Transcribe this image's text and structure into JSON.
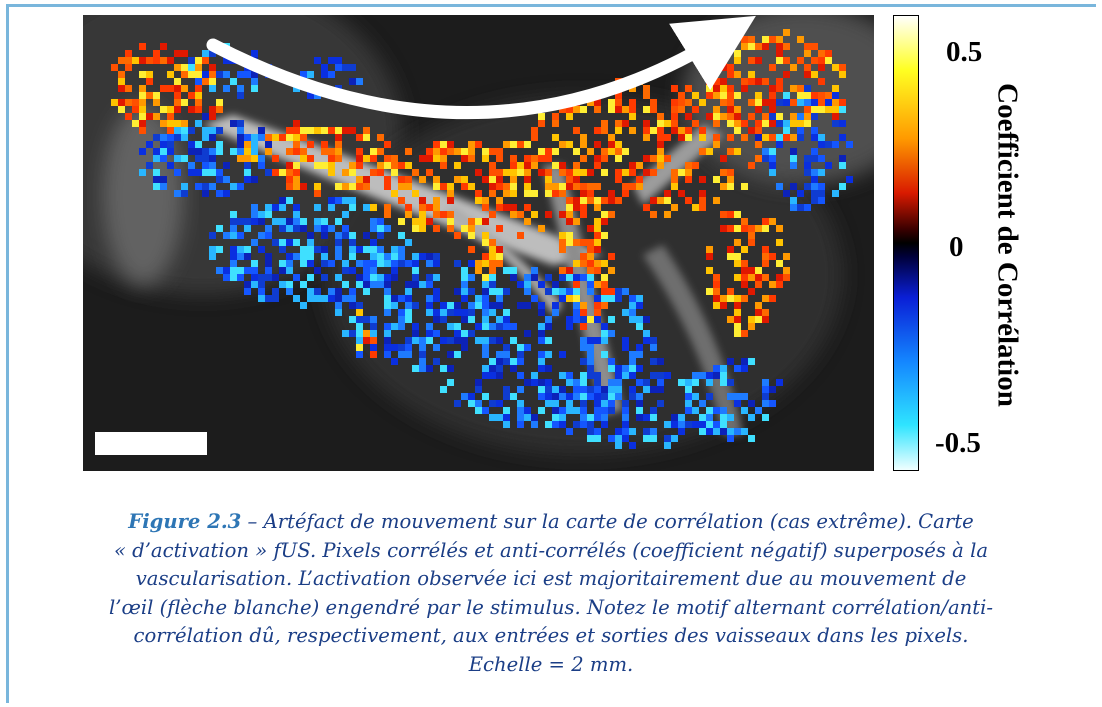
{
  "colorbar": {
    "title": "Coefficient de Corrélation",
    "ticks": [
      "0.5",
      "0",
      "-0.5"
    ]
  },
  "caption": {
    "label": "Figure 2.3",
    "lines": [
      " – Artéfact de mouvement sur la carte de corrélation (cas extrême). Carte",
      "« d’activation » fUS. Pixels corrélés et anti-corrélés (coefficient négatif) superposés à la",
      "vascularisation. L’activation observée ici est majoritairement due au mouvement de",
      "l’œil (flèche blanche) engendré par le stimulus. Notez le motif alternant corrélation/anti-",
      "corrélation dû, respectivement, aux entrées et sorties des vaisseaux dans les pixels.",
      "Echelle = 2 mm."
    ]
  },
  "colors": {
    "frame": "#79b6dc",
    "caption_text": "#1b3e86",
    "caption_label": "#2e76b5"
  }
}
